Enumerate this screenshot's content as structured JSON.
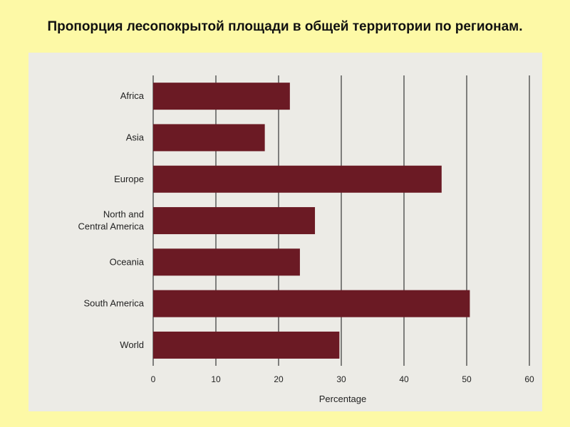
{
  "slide": {
    "title": "Пропорция лесопокрытой площади  в общей территории по регионам.",
    "background": "#fdf9a6"
  },
  "chart_data": {
    "type": "bar",
    "orientation": "horizontal",
    "categories": [
      "Africa",
      "Asia",
      "Europe",
      "North and\nCentral America",
      "Oceania",
      "South America",
      "World"
    ],
    "values": [
      21.8,
      17.8,
      46.0,
      25.8,
      23.4,
      50.5,
      29.7
    ],
    "xlabel": "Percentage",
    "ylabel": "",
    "xlim": [
      0,
      60
    ],
    "xticks": [
      0,
      10,
      20,
      30,
      40,
      50,
      60
    ],
    "grid": "vertical",
    "bar_color": "#6b1a24",
    "panel_color": "#ecebe6"
  }
}
